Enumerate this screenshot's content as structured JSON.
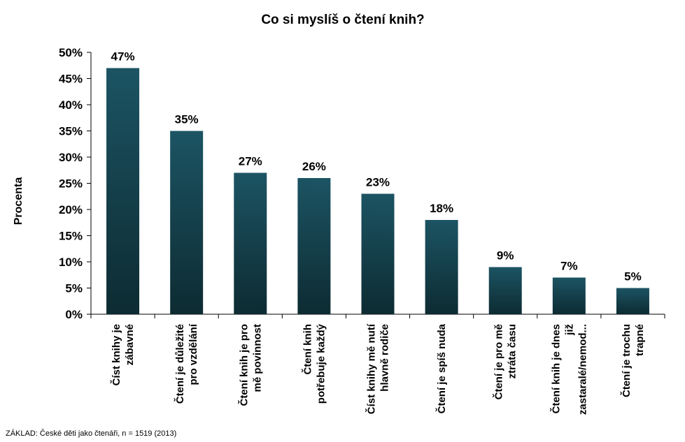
{
  "chart_data": {
    "type": "bar",
    "title": "Co si myslíš o čtení knih?",
    "ylabel": "Procenta",
    "xlabel": "",
    "ylim": [
      0,
      50
    ],
    "yticks": [
      "0%",
      "5%",
      "10%",
      "15%",
      "20%",
      "25%",
      "30%",
      "35%",
      "40%",
      "45%",
      "50%"
    ],
    "categories": [
      [
        "Číst knihy je",
        "zábavné"
      ],
      [
        "Čtení je důležité",
        "pro vzdělání"
      ],
      [
        "Čtení knih je pro",
        "mě povinnost"
      ],
      [
        "Čtení knih",
        "potřebuje každý"
      ],
      [
        "Číst knihy mě nutí",
        "hlavně rodiče"
      ],
      [
        "Čtení je spíš nuda"
      ],
      [
        "Čtení je pro mě",
        "ztráta času"
      ],
      [
        "Čtení knih je dnes",
        "již",
        "zastaralé/nemod..."
      ],
      [
        "Čtení je trochu",
        "trapné"
      ]
    ],
    "values": [
      47,
      35,
      27,
      26,
      23,
      18,
      9,
      7,
      5
    ],
    "data_labels": [
      "47%",
      "35%",
      "27%",
      "26%",
      "23%",
      "18%",
      "9%",
      "7%",
      "5%"
    ],
    "bar_color_top": "#1c5463",
    "bar_color_bottom": "#0d2b32",
    "grid": false,
    "legend": "none"
  },
  "footnote": "ZÁKLAD: České děti jako čtenáři, n = 1519  (2013)"
}
